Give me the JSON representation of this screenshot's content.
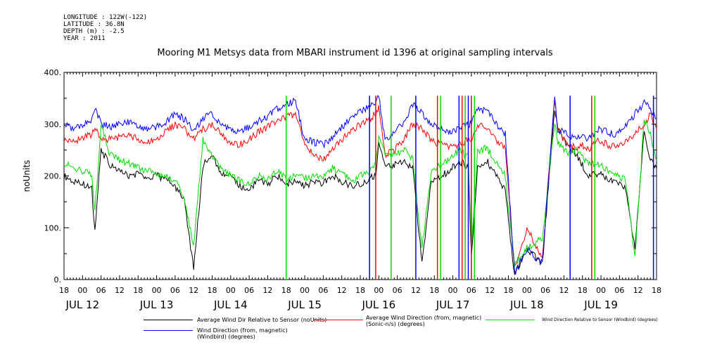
{
  "meta": {
    "longitude": "LONGITUDE : 122W(-122)",
    "latitude": "LATITUDE : 36.8N",
    "depth": "DEPTH (m) : -2.5",
    "year": "YEAR : 2011"
  },
  "chart_data": {
    "type": "line",
    "title": "Mooring M1 Metsys data from MBARI instrument id 1396 at original sampling intervals",
    "ylabel": "noUnits",
    "ylim": [
      0,
      400
    ],
    "y_ticks": [
      "0.",
      "100.",
      "200.",
      "300.",
      "400."
    ],
    "xlim": [
      "2011-07-11 18:00",
      "2011-07-19 18:00"
    ],
    "x_hour_ticks": [
      "18",
      "00",
      "06",
      "12",
      "18",
      "00",
      "06",
      "12",
      "18",
      "00",
      "06",
      "12",
      "18",
      "00",
      "06",
      "12",
      "18",
      "00",
      "06",
      "12",
      "18",
      "00",
      "06",
      "12",
      "18",
      "00",
      "06",
      "12",
      "18",
      "00",
      "06",
      "12",
      "18"
    ],
    "x_day_labels": [
      "JUL 12",
      "JUL 13",
      "JUL 14",
      "JUL 15",
      "JUL 16",
      "JUL 17",
      "JUL 18",
      "JUL 19"
    ],
    "grid": false,
    "colors": {
      "black": "#000000",
      "red": "#ff0000",
      "green": "#00dd00",
      "blue": "#0000ff"
    },
    "series": [
      {
        "name": "Average Wind Dir Relative to Sensor (noUnits)",
        "color": "#000000",
        "x": [
          0,
          3,
          6,
          9,
          10,
          12,
          15,
          18,
          21,
          24,
          27,
          30,
          33,
          36,
          39,
          42,
          45,
          48,
          51,
          54,
          57,
          60,
          63,
          66,
          69,
          72,
          75,
          78,
          81,
          84,
          87,
          90,
          93,
          96,
          99,
          101,
          102,
          104,
          107,
          110,
          113,
          116,
          119,
          122,
          125,
          128,
          131,
          132,
          134,
          137,
          140,
          143,
          146,
          150,
          155,
          159,
          160,
          163,
          166,
          168,
          170,
          173,
          176,
          179,
          182,
          185,
          188,
          190,
          192
        ],
        "y": [
          200,
          190,
          185,
          175,
          95,
          250,
          220,
          210,
          200,
          205,
          195,
          200,
          195,
          180,
          150,
          20,
          220,
          240,
          205,
          200,
          180,
          175,
          190,
          185,
          200,
          185,
          190,
          180,
          190,
          185,
          200,
          190,
          180,
          185,
          195,
          200,
          260,
          225,
          220,
          230,
          215,
          30,
          190,
          200,
          210,
          230,
          215,
          40,
          220,
          230,
          200,
          170,
          10,
          60,
          30,
          330,
          290,
          260,
          240,
          220,
          200,
          205,
          195,
          190,
          175,
          60,
          290,
          230,
          215
        ]
      },
      {
        "name": "Average Wind Direction (from, magnetic) (Sonic-n/s) (degrees)",
        "color": "#ff0000",
        "x": [
          0,
          3,
          6,
          9,
          10,
          12,
          15,
          18,
          21,
          24,
          27,
          30,
          33,
          36,
          39,
          42,
          45,
          48,
          51,
          54,
          57,
          60,
          63,
          66,
          69,
          72,
          75,
          78,
          81,
          84,
          87,
          90,
          93,
          96,
          99,
          101,
          102,
          104,
          107,
          110,
          113,
          116,
          119,
          122,
          125,
          128,
          131,
          132,
          134,
          137,
          140,
          143,
          146,
          150,
          155,
          159,
          160,
          163,
          166,
          168,
          170,
          173,
          176,
          179,
          182,
          185,
          188,
          190,
          192
        ],
        "y": [
          270,
          265,
          275,
          280,
          290,
          275,
          270,
          275,
          280,
          270,
          265,
          270,
          285,
          300,
          290,
          270,
          290,
          300,
          280,
          265,
          260,
          270,
          285,
          295,
          305,
          315,
          320,
          260,
          240,
          230,
          250,
          270,
          285,
          300,
          310,
          320,
          330,
          240,
          250,
          270,
          300,
          290,
          270,
          260,
          255,
          260,
          270,
          270,
          300,
          290,
          270,
          250,
          20,
          100,
          40,
          350,
          290,
          260,
          255,
          260,
          250,
          270,
          260,
          255,
          265,
          280,
          300,
          320,
          290
        ]
      },
      {
        "name": "Wind Direction Relative to Sensor (Windbird) (degrees)",
        "color": "#00dd00",
        "x": [
          0,
          3,
          6,
          9,
          10,
          12,
          15,
          18,
          21,
          24,
          27,
          30,
          33,
          36,
          39,
          42,
          45,
          48,
          51,
          54,
          57,
          60,
          63,
          66,
          69,
          72,
          75,
          78,
          81,
          84,
          87,
          90,
          93,
          96,
          99,
          101,
          102,
          104,
          107,
          110,
          113,
          116,
          119,
          122,
          125,
          128,
          131,
          132,
          134,
          137,
          140,
          143,
          146,
          150,
          155,
          159,
          160,
          163,
          166,
          168,
          170,
          173,
          176,
          179,
          182,
          185,
          188,
          190,
          192
        ],
        "y": [
          225,
          215,
          210,
          200,
          130,
          300,
          240,
          230,
          225,
          215,
          210,
          205,
          200,
          190,
          160,
          60,
          270,
          240,
          210,
          200,
          190,
          185,
          200,
          195,
          210,
          195,
          200,
          195,
          200,
          195,
          215,
          205,
          190,
          200,
          210,
          225,
          270,
          245,
          240,
          250,
          235,
          60,
          210,
          220,
          230,
          250,
          235,
          60,
          245,
          255,
          225,
          200,
          30,
          60,
          80,
          300,
          265,
          245,
          250,
          235,
          225,
          225,
          210,
          205,
          190,
          40,
          310,
          280,
          230
        ]
      },
      {
        "name": "Wind Direction (from, magnetic) (Windbird) (degrees)",
        "color": "#0000ff",
        "x": [
          0,
          3,
          6,
          9,
          10,
          12,
          15,
          18,
          21,
          24,
          27,
          30,
          33,
          36,
          39,
          42,
          45,
          48,
          51,
          54,
          57,
          60,
          63,
          66,
          69,
          72,
          75,
          78,
          81,
          84,
          87,
          90,
          93,
          96,
          99,
          101,
          102,
          104,
          107,
          110,
          113,
          116,
          119,
          122,
          125,
          128,
          131,
          132,
          134,
          137,
          140,
          143,
          146,
          150,
          155,
          159,
          160,
          163,
          166,
          168,
          170,
          173,
          176,
          179,
          182,
          185,
          188,
          190,
          192
        ],
        "y": [
          300,
          290,
          300,
          305,
          335,
          300,
          295,
          300,
          305,
          295,
          290,
          295,
          305,
          320,
          310,
          290,
          310,
          320,
          300,
          290,
          285,
          295,
          305,
          315,
          330,
          340,
          345,
          270,
          265,
          260,
          275,
          295,
          310,
          325,
          335,
          340,
          355,
          270,
          285,
          300,
          340,
          320,
          300,
          290,
          285,
          290,
          300,
          300,
          330,
          325,
          300,
          280,
          10,
          60,
          30,
          355,
          290,
          280,
          275,
          280,
          270,
          290,
          285,
          280,
          295,
          320,
          340,
          330,
          310
        ]
      }
    ],
    "spikes": [
      {
        "series": 3,
        "x": [
          72,
          99,
          101,
          106,
          114,
          121,
          122,
          128,
          129,
          130,
          131,
          132,
          133,
          164,
          171,
          172,
          191
        ],
        "lo": 0,
        "hi": 355
      }
    ]
  }
}
